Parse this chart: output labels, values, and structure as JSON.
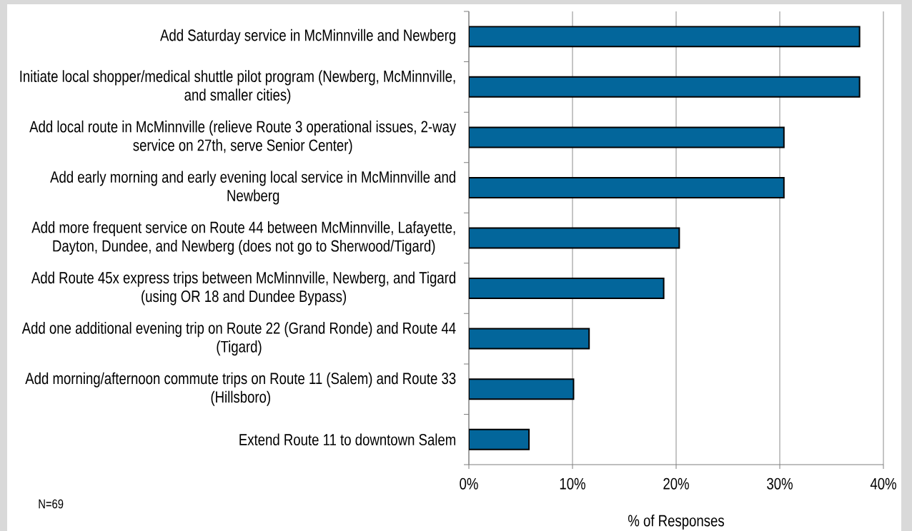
{
  "chart_data": {
    "type": "bar",
    "orientation": "horizontal",
    "categories": [
      "Add Saturday service in McMinnville and Newberg",
      "Initiate local shopper/medical shuttle pilot program (Newberg, McMinnville, and smaller cities)",
      "Add local route in McMinnville (relieve Route 3 operational issues, 2-way service on 27th, serve Senior Center)",
      "Add early morning and early evening local service in McMinnville and Newberg",
      "Add more frequent service on Route 44 between McMinnville, Lafayette, Dayton, Dundee, and Newberg (does not go to Sherwood/Tigard)",
      "Add Route 45x express trips between McMinnville, Newberg, and Tigard (using OR 18 and Dundee Bypass)",
      "Add one additional evening trip on Route 22 (Grand Ronde) and Route 44 (Tigard)",
      "Add morning/afternoon commute trips on Route 11 (Salem) and Route 33 (Hillsboro)",
      "Extend Route 11 to downtown Salem"
    ],
    "values": [
      37.7,
      37.7,
      30.4,
      30.4,
      20.3,
      18.8,
      11.6,
      10.1,
      5.8
    ],
    "color": "#03669b",
    "xlabel": "% of Responses",
    "xlim": [
      0,
      40
    ],
    "xticks": [
      {
        "value": 0,
        "label": "0%"
      },
      {
        "value": 10,
        "label": "10%"
      },
      {
        "value": 20,
        "label": "20%"
      },
      {
        "value": 30,
        "label": "30%"
      },
      {
        "value": 40,
        "label": "40%"
      }
    ],
    "grid": "x",
    "annotations": [
      "N=69"
    ]
  }
}
